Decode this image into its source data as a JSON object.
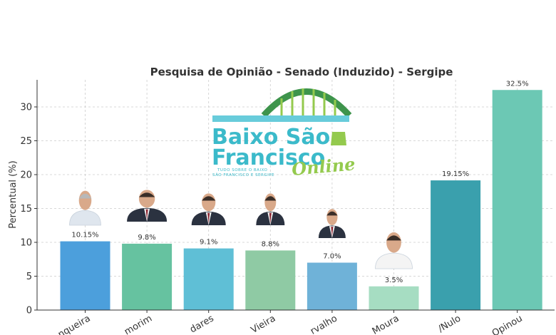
{
  "chart_data": {
    "type": "bar",
    "title": "Pesquisa de Opinião - Senado (Induzido) - Sergipe",
    "xlabel": "",
    "ylabel": "Percentual (%)",
    "ylim": [
      0,
      34
    ],
    "yticks": [
      0,
      5,
      10,
      15,
      20,
      25,
      30
    ],
    "grid": true,
    "categories": [
      "nqueira",
      "morim",
      "dares",
      "Vieira",
      "rvalho",
      "Moura",
      "/Nulo",
      "Opinou"
    ],
    "values": [
      10.15,
      9.8,
      9.1,
      8.8,
      7.0,
      3.5,
      19.15,
      32.5
    ],
    "value_labels": [
      "10.15%",
      "9.8%",
      "9.1%",
      "8.8%",
      "7.0%",
      "3.5%",
      "19.15%",
      "32.5%"
    ],
    "colors": [
      "#4c9fdc",
      "#66c2a0",
      "#5fbfd6",
      "#8fcaa4",
      "#6fb2d8",
      "#a6ddc2",
      "#3aa0ad",
      "#6cc8b4"
    ]
  },
  "watermark": {
    "line1": "Baixo São",
    "line2": "Francisco",
    "line3": "Online",
    "tagline1": "TUDO SOBRE O BAIXO",
    "tagline2": "SÃO FRANCISCO E SERGIPE"
  }
}
